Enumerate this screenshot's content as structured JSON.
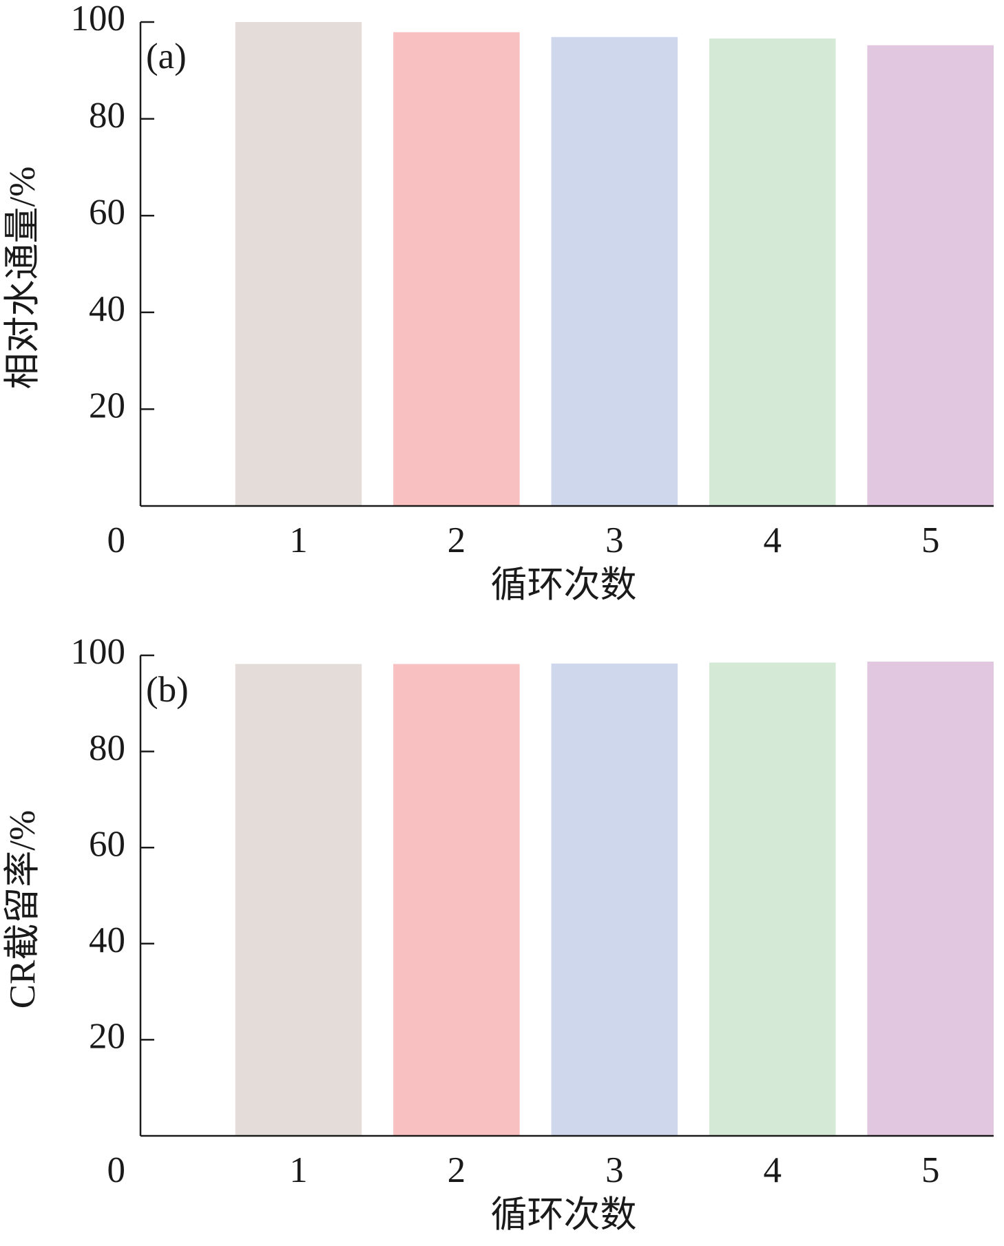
{
  "chart_data": [
    {
      "type": "bar",
      "annotation": "(a)",
      "xlabel": "循环次数",
      "ylabel": "相对水通量/%",
      "categories": [
        "1",
        "2",
        "3",
        "4",
        "5"
      ],
      "values": [
        100,
        97.9,
        96.9,
        96.6,
        95.2
      ],
      "colors": [
        "#e3dcd8",
        "#f8c0c0",
        "#cfd7ec",
        "#d4e9d6",
        "#e1c7df"
      ],
      "ylim": [
        0,
        100
      ],
      "yticks": [
        0,
        20,
        40,
        60,
        80,
        100
      ]
    },
    {
      "type": "bar",
      "annotation": "(b)",
      "xlabel": "循环次数",
      "ylabel": "CR截留率/%",
      "categories": [
        "1",
        "2",
        "3",
        "4",
        "5"
      ],
      "values": [
        98.2,
        98.2,
        98.3,
        98.5,
        98.7
      ],
      "colors": [
        "#e3dcd8",
        "#f8c0c0",
        "#cfd7ec",
        "#d4e9d6",
        "#e1c7df"
      ],
      "ylim": [
        0,
        100
      ],
      "yticks": [
        0,
        20,
        40,
        60,
        80,
        100
      ]
    }
  ]
}
